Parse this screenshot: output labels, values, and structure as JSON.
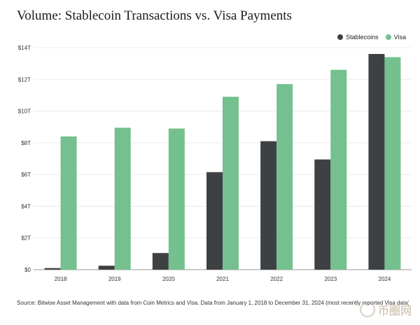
{
  "colors": {
    "stablecoins": "#3d4144",
    "visa": "#74c08f",
    "grid": "#e6e6e6",
    "axis": "#9a9a9a"
  },
  "chart_data": {
    "type": "bar",
    "title": "Volume: Stablecoin Transactions vs. Visa Payments",
    "categories": [
      "2018",
      "2019",
      "2020",
      "2021",
      "2022",
      "2023",
      "2024"
    ],
    "series": [
      {
        "name": "Stablecoins",
        "values": [
          0.1,
          0.25,
          1.05,
          6.15,
          8.1,
          6.95,
          13.6
        ]
      },
      {
        "name": "Visa",
        "values": [
          8.4,
          8.95,
          8.9,
          10.9,
          11.7,
          12.6,
          13.4
        ]
      }
    ],
    "yticks": [
      "$0",
      "$2T",
      "$4T",
      "$6T",
      "$8T",
      "$10T",
      "$12T",
      "$14T"
    ],
    "ylim": [
      0,
      14
    ],
    "legend_position": "top-right",
    "grid": true
  },
  "legend": {
    "stablecoins": "Stablecoins",
    "visa": "Visa"
  },
  "source": "Source: Bitwise Asset Management with data from Coin Metrics and Visa. Data from January 1, 2018 to December 31, 2024 (most recently reported Visa data).",
  "watermark": {
    "text": "币圈网",
    "subtext": "ALIBTC.COM"
  }
}
